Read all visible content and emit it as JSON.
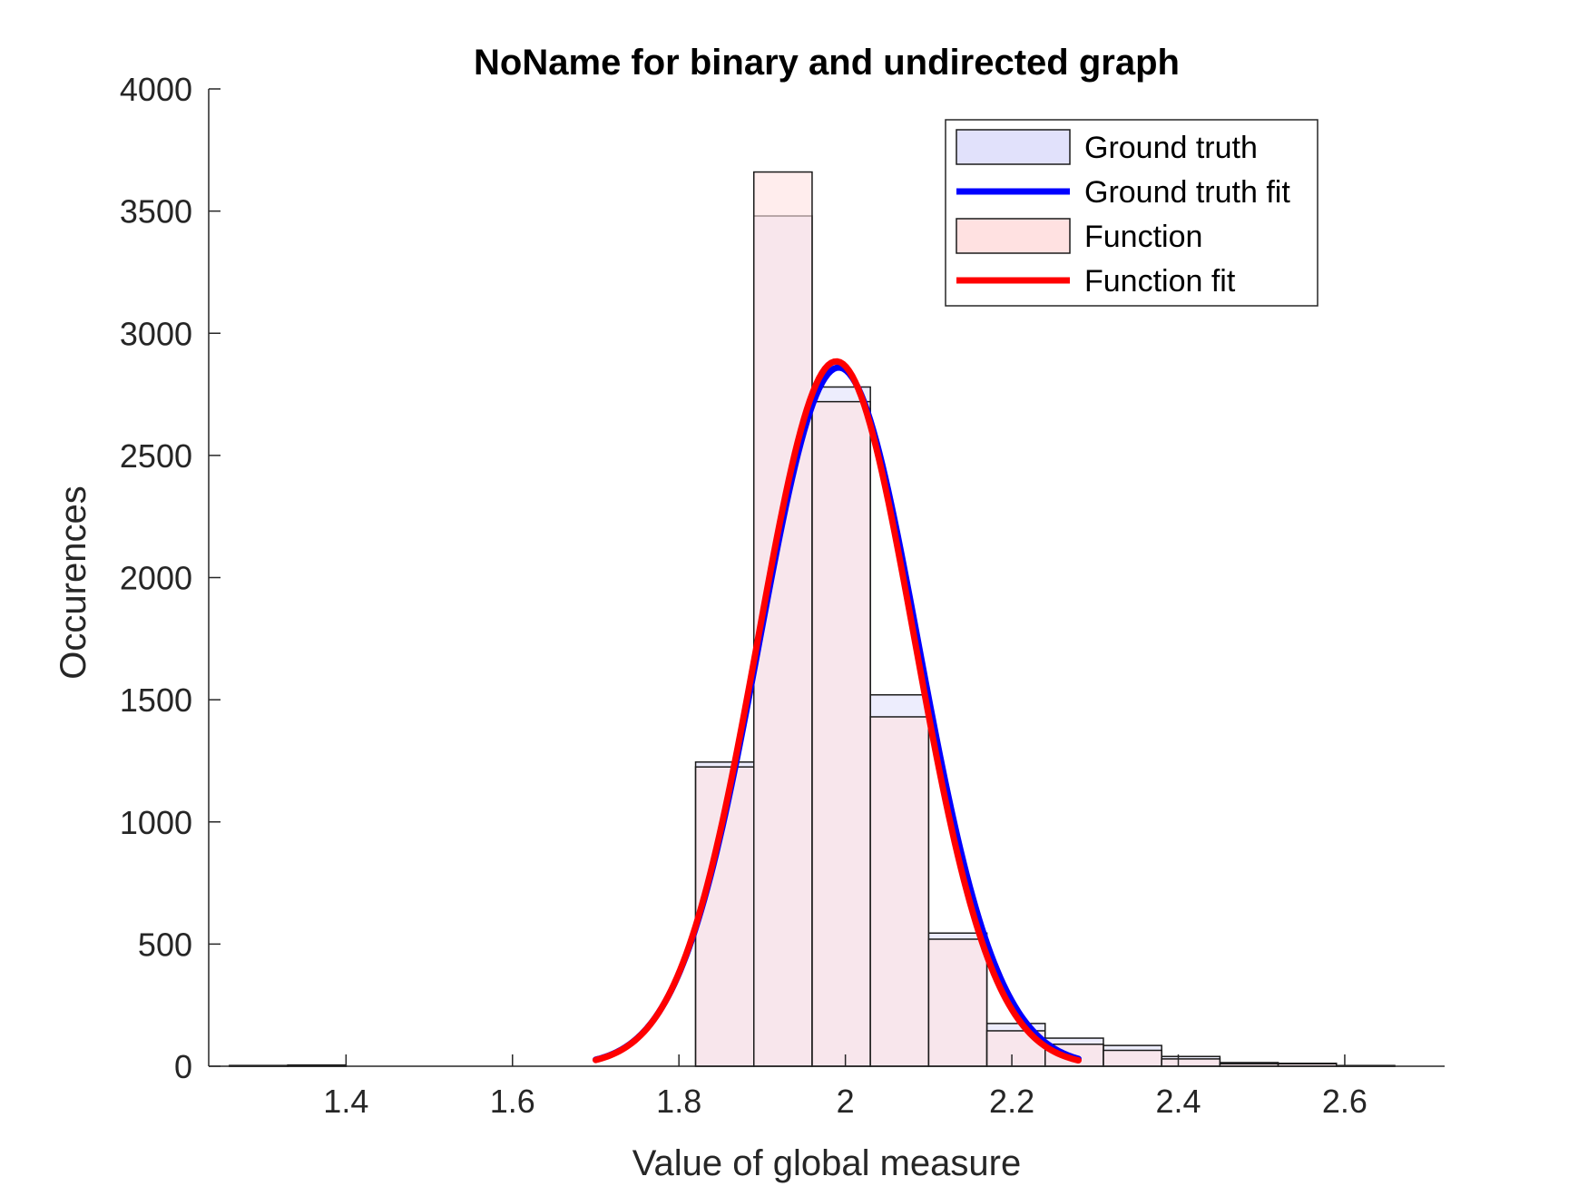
{
  "chart_data": {
    "type": "bar",
    "title": "NoName for binary and undirected graph",
    "xlabel": "Value of global measure",
    "ylabel": "Occurences",
    "xlim": [
      1.235,
      2.72
    ],
    "ylim": [
      0,
      4000
    ],
    "xticks": [
      1.4,
      1.6,
      1.8,
      2,
      2.2,
      2.4,
      2.6
    ],
    "xtick_labels": [
      "1.4",
      "1.6",
      "1.8",
      "2",
      "2.2",
      "2.4",
      "2.6"
    ],
    "yticks": [
      0,
      500,
      1000,
      1500,
      2000,
      2500,
      3000,
      3500,
      4000
    ],
    "ytick_labels": [
      "0",
      "500",
      "1000",
      "1500",
      "2000",
      "2500",
      "3000",
      "3500",
      "4000"
    ],
    "grid": false,
    "legend_position": "top-right",
    "bin_edges": [
      1.26,
      1.33,
      1.4,
      1.47,
      1.54,
      1.61,
      1.68,
      1.75,
      1.82,
      1.89,
      1.96,
      2.03,
      2.1,
      2.17,
      2.24,
      2.31,
      2.38,
      2.45,
      2.52,
      2.59,
      2.66
    ],
    "series": [
      {
        "name": "Ground truth",
        "kind": "histogram",
        "color": "#e1e1fb",
        "values": [
          3,
          4,
          0,
          0,
          0,
          0,
          0,
          0,
          1245,
          3480,
          2780,
          1520,
          545,
          175,
          115,
          85,
          40,
          15,
          12,
          3
        ]
      },
      {
        "name": "Ground truth fit",
        "kind": "fit",
        "color": "#0000ff",
        "mean": 1.992,
        "sd": 0.0955,
        "peak": 2860,
        "x_range": [
          1.7,
          2.28
        ]
      },
      {
        "name": "Function",
        "kind": "histogram",
        "color": "#ffe1e1",
        "values": [
          3,
          5,
          0,
          0,
          0,
          0,
          0,
          0,
          1225,
          3660,
          2720,
          1430,
          520,
          145,
          90,
          65,
          30,
          10,
          10,
          2
        ]
      },
      {
        "name": "Function fit",
        "kind": "fit",
        "color": "#ff0000",
        "mean": 1.989,
        "sd": 0.094,
        "peak": 2885,
        "x_range": [
          1.7,
          2.28
        ]
      }
    ]
  }
}
